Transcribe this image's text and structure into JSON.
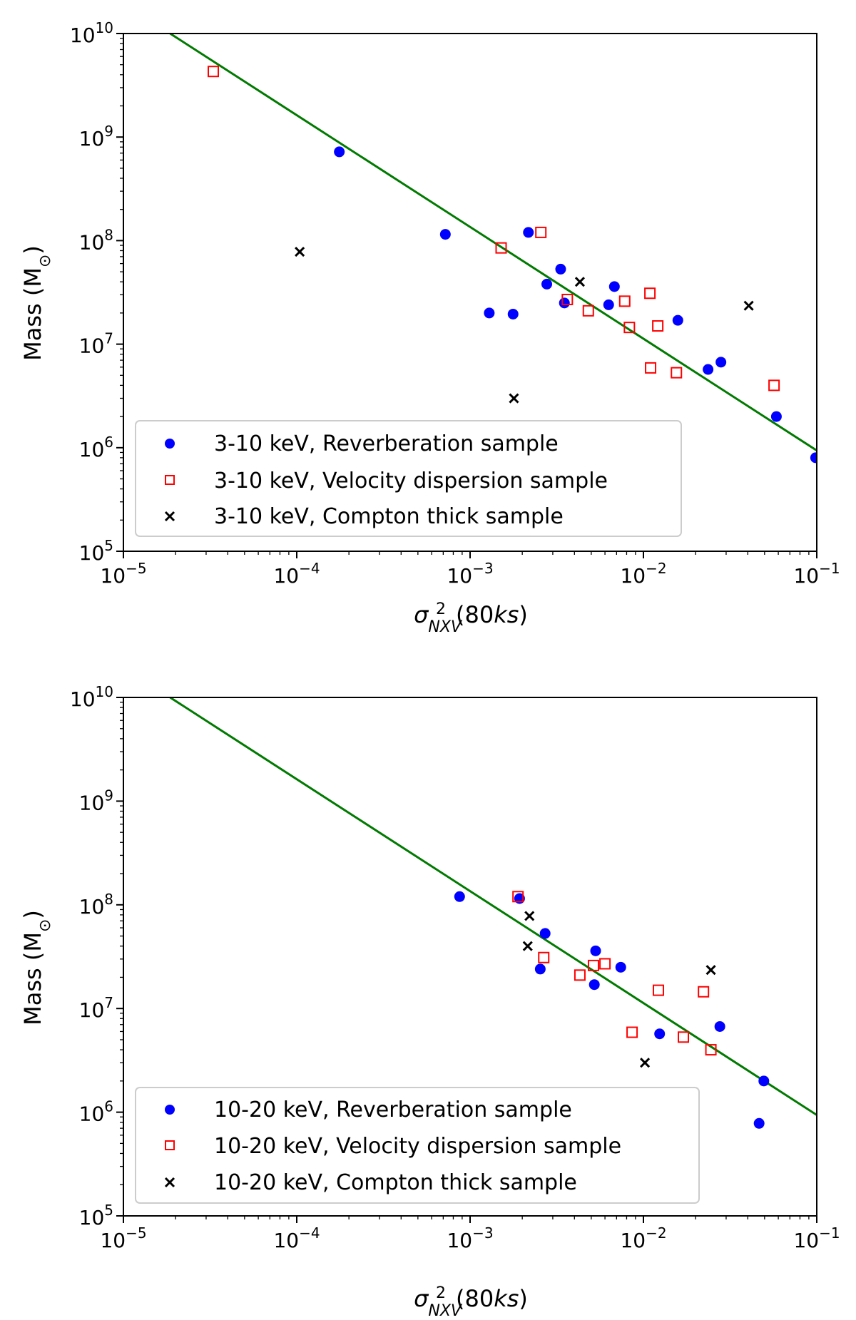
{
  "chart_data": [
    {
      "type": "scatter",
      "xscale": "log",
      "yscale": "log",
      "xlabel": {
        "sigma": "σ",
        "sub": "NXV",
        "sup": "2",
        "paren": "(80",
        "ks": "ks",
        "close": ")"
      },
      "ylabel": {
        "main": "Mass (M",
        "sub": "⊙",
        "close": ")"
      },
      "xlim": [
        1e-05,
        0.1
      ],
      "ylim": [
        100000.0,
        10000000000.0
      ],
      "xticks": [
        {
          "value": 1e-05,
          "base": "10",
          "exp": "−5"
        },
        {
          "value": 0.0001,
          "base": "10",
          "exp": "−4"
        },
        {
          "value": 0.001,
          "base": "10",
          "exp": "−3"
        },
        {
          "value": 0.01,
          "base": "10",
          "exp": "−2"
        },
        {
          "value": 0.1,
          "base": "10",
          "exp": "−1"
        }
      ],
      "yticks": [
        {
          "value": 100000.0,
          "base": "10",
          "exp": "5"
        },
        {
          "value": 1000000.0,
          "base": "10",
          "exp": "6"
        },
        {
          "value": 10000000.0,
          "base": "10",
          "exp": "7"
        },
        {
          "value": 100000000.0,
          "base": "10",
          "exp": "8"
        },
        {
          "value": 1000000000.0,
          "base": "10",
          "exp": "9"
        },
        {
          "value": 10000000000.0,
          "base": "10",
          "exp": "10"
        }
      ],
      "fit_line": {
        "color": "#007a00",
        "points": [
          [
            1.86e-05,
            10000000000.0
          ],
          [
            0.1,
            940000.0
          ]
        ]
      },
      "legend_position": "lower-left",
      "series": [
        {
          "name": "3-10 keV, Reverberation sample",
          "marker": "circle",
          "color": "#0000ff",
          "points": [
            [
              0.000176,
              720000000.0
            ],
            [
              0.00072,
              115000000.0
            ],
            [
              0.00129,
              20000000.0
            ],
            [
              0.00177,
              19500000.0
            ],
            [
              0.00217,
              120000000.0
            ],
            [
              0.00277,
              38000000.0
            ],
            [
              0.00333,
              53000000.0
            ],
            [
              0.0035,
              25000000.0
            ],
            [
              0.0063,
              24000000.0
            ],
            [
              0.0068,
              36000000.0
            ],
            [
              0.0158,
              17000000.0
            ],
            [
              0.0236,
              5700000.0
            ],
            [
              0.028,
              6700000.0
            ],
            [
              0.0585,
              2000000.0
            ],
            [
              0.0985,
              800000.0
            ]
          ]
        },
        {
          "name": "3-10 keV, Velocity dispersion sample",
          "marker": "square",
          "color": "#ff0000",
          "points": [
            [
              3.3e-05,
              4300000000.0
            ],
            [
              0.00151,
              85000000.0
            ],
            [
              0.00256,
              120000000.0
            ],
            [
              0.00364,
              27000000.0
            ],
            [
              0.00481,
              21000000.0
            ],
            [
              0.0078,
              26000000.0
            ],
            [
              0.0083,
              14500000.0
            ],
            [
              0.0109,
              31000000.0
            ],
            [
              0.011,
              5900000.0
            ],
            [
              0.0121,
              15000000.0
            ],
            [
              0.0155,
              5300000.0
            ],
            [
              0.0567,
              4000000.0
            ]
          ]
        },
        {
          "name": "3-10 keV, Compton thick sample",
          "marker": "x",
          "color": "#000000",
          "points": [
            [
              0.000104,
              78000000.0
            ],
            [
              0.00179,
              3000000.0
            ],
            [
              0.0043,
              40000000.0
            ],
            [
              0.0405,
              23500000.0
            ]
          ]
        }
      ]
    },
    {
      "type": "scatter",
      "xscale": "log",
      "yscale": "log",
      "xlabel": {
        "sigma": "σ",
        "sub": "NXV",
        "sup": "2",
        "paren": "(80",
        "ks": "ks",
        "close": ")"
      },
      "ylabel": {
        "main": "Mass (M",
        "sub": "⊙",
        "close": ")"
      },
      "xlim": [
        1e-05,
        0.1
      ],
      "ylim": [
        100000.0,
        10000000000.0
      ],
      "xticks": [
        {
          "value": 1e-05,
          "base": "10",
          "exp": "−5"
        },
        {
          "value": 0.0001,
          "base": "10",
          "exp": "−4"
        },
        {
          "value": 0.001,
          "base": "10",
          "exp": "−3"
        },
        {
          "value": 0.01,
          "base": "10",
          "exp": "−2"
        },
        {
          "value": 0.1,
          "base": "10",
          "exp": "−1"
        }
      ],
      "yticks": [
        {
          "value": 100000.0,
          "base": "10",
          "exp": "5"
        },
        {
          "value": 1000000.0,
          "base": "10",
          "exp": "6"
        },
        {
          "value": 10000000.0,
          "base": "10",
          "exp": "7"
        },
        {
          "value": 100000000.0,
          "base": "10",
          "exp": "8"
        },
        {
          "value": 1000000000.0,
          "base": "10",
          "exp": "9"
        },
        {
          "value": 10000000000.0,
          "base": "10",
          "exp": "10"
        }
      ],
      "fit_line": {
        "color": "#007a00",
        "points": [
          [
            1.86e-05,
            10000000000.0
          ],
          [
            0.1,
            940000.0
          ]
        ]
      },
      "legend_position": "lower-left",
      "series": [
        {
          "name": "10-20 keV, Reverberation sample",
          "marker": "circle",
          "color": "#0000ff",
          "points": [
            [
              0.00087,
              120000000.0
            ],
            [
              0.00193,
              115000000.0
            ],
            [
              0.00254,
              24000000.0
            ],
            [
              0.00271,
              53000000.0
            ],
            [
              0.00521,
              17000000.0
            ],
            [
              0.0053,
              36000000.0
            ],
            [
              0.0074,
              25000000.0
            ],
            [
              0.0124,
              5700000.0
            ],
            [
              0.0276,
              6700000.0
            ],
            [
              0.0495,
              2000000.0
            ],
            [
              0.0465,
              780000.0
            ]
          ]
        },
        {
          "name": "10-20 keV, Velocity dispersion sample",
          "marker": "square",
          "color": "#ff0000",
          "points": [
            [
              0.00189,
              120000000.0
            ],
            [
              0.00266,
              31000000.0
            ],
            [
              0.0043,
              21000000.0
            ],
            [
              0.00515,
              26000000.0
            ],
            [
              0.006,
              27000000.0
            ],
            [
              0.0086,
              5900000.0
            ],
            [
              0.0122,
              15000000.0
            ],
            [
              0.017,
              5300000.0
            ],
            [
              0.0222,
              14500000.0
            ],
            [
              0.0245,
              4000000.0
            ]
          ]
        },
        {
          "name": "10-20 keV, Compton thick sample",
          "marker": "x",
          "color": "#000000",
          "points": [
            [
              0.00215,
              40000000.0
            ],
            [
              0.0022,
              78000000.0
            ],
            [
              0.0102,
              3000000.0
            ],
            [
              0.0245,
              23500000.0
            ]
          ]
        }
      ]
    }
  ]
}
